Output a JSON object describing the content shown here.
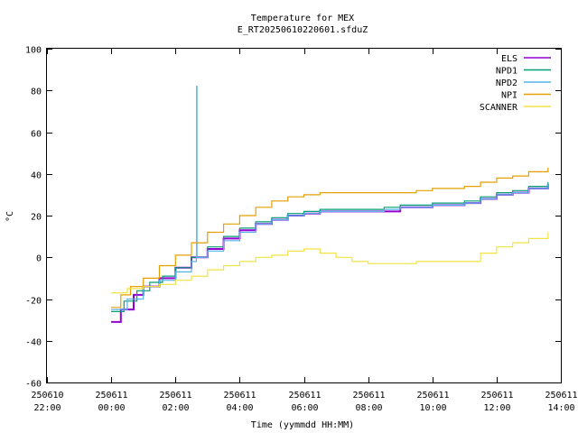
{
  "chart_data": {
    "type": "line",
    "title": "Temperature for MEX",
    "subtitle": "E_RT20250610220601.sfduZ",
    "xlabel": "Time (yymmdd HH:MM)",
    "ylabel": "°C",
    "x_unit": "hours",
    "xlim": [
      -2,
      14
    ],
    "ylim": [
      -60,
      100
    ],
    "y_ticks": [
      -60,
      -40,
      -20,
      0,
      20,
      40,
      60,
      80,
      100
    ],
    "x_ticks": [
      {
        "x": -2,
        "date": "250610",
        "time": "22:00"
      },
      {
        "x": 0,
        "date": "250611",
        "time": "00:00"
      },
      {
        "x": 2,
        "date": "250611",
        "time": "02:00"
      },
      {
        "x": 4,
        "date": "250611",
        "time": "04:00"
      },
      {
        "x": 6,
        "date": "250611",
        "time": "06:00"
      },
      {
        "x": 8,
        "date": "250611",
        "time": "08:00"
      },
      {
        "x": 10,
        "date": "250611",
        "time": "10:00"
      },
      {
        "x": 12,
        "date": "250611",
        "time": "12:00"
      },
      {
        "x": 14,
        "date": "250611",
        "time": "14:00"
      }
    ],
    "grid": false,
    "legend": "top-right",
    "series": [
      {
        "name": "ELS",
        "color": "#9400d3",
        "x": [
          0.0,
          0.3,
          0.7,
          1.0,
          1.5,
          2.0,
          2.5,
          3.0,
          3.5,
          4.0,
          4.5,
          5.0,
          5.5,
          6.0,
          6.5,
          7.0,
          7.5,
          8.0,
          8.5,
          9.0,
          9.5,
          10.0,
          10.5,
          11.0,
          11.5,
          12.0,
          12.5,
          13.0,
          13.6
        ],
        "y": [
          -31,
          -25,
          -18,
          -14,
          -10,
          -5,
          0,
          4,
          9,
          13,
          16,
          18,
          20,
          21,
          22,
          22,
          22,
          22,
          22,
          24,
          24,
          25,
          25,
          26,
          28,
          30,
          31,
          33,
          35
        ]
      },
      {
        "name": "NPD1",
        "color": "#009e73",
        "x": [
          0.0,
          0.4,
          0.8,
          1.2,
          1.6,
          2.0,
          2.5,
          3.0,
          3.5,
          4.0,
          4.5,
          5.0,
          5.5,
          6.0,
          6.5,
          7.0,
          7.5,
          8.0,
          8.5,
          9.0,
          9.5,
          10.0,
          10.5,
          11.0,
          11.5,
          12.0,
          12.5,
          13.0,
          13.6
        ],
        "y": [
          -26,
          -21,
          -16,
          -12,
          -9,
          -5,
          0,
          5,
          10,
          14,
          17,
          19,
          21,
          22,
          23,
          23,
          23,
          23,
          24,
          25,
          25,
          26,
          26,
          27,
          29,
          31,
          32,
          34,
          36
        ]
      },
      {
        "name": "NPD2",
        "color": "#56b4e9",
        "x": [
          0.0,
          0.5,
          1.0,
          1.5,
          2.0,
          2.5,
          2.65,
          2.66,
          2.67,
          3.0,
          3.5,
          4.0,
          4.5,
          5.0,
          5.5,
          6.0,
          6.5,
          7.0,
          7.5,
          8.0,
          8.5,
          9.0,
          9.5,
          10.0,
          10.5,
          11.0,
          11.5,
          12.0,
          12.5,
          13.0,
          13.6
        ],
        "y": [
          -25,
          -20,
          -14,
          -11,
          -7,
          -2,
          0,
          82,
          0,
          3,
          8,
          12,
          16,
          18,
          20,
          21,
          22,
          22,
          22,
          22,
          23,
          24,
          24,
          25,
          25,
          26,
          28,
          30,
          31,
          33,
          35
        ]
      },
      {
        "name": "NPI",
        "color": "#e69f00",
        "x": [
          0.0,
          0.3,
          0.6,
          1.0,
          1.5,
          2.0,
          2.5,
          3.0,
          3.5,
          4.0,
          4.5,
          5.0,
          5.5,
          6.0,
          6.5,
          7.0,
          7.5,
          8.0,
          8.5,
          9.0,
          9.5,
          10.0,
          10.5,
          11.0,
          11.5,
          12.0,
          12.5,
          13.0,
          13.6
        ],
        "y": [
          -24,
          -18,
          -14,
          -10,
          -4,
          1,
          7,
          12,
          16,
          20,
          24,
          27,
          29,
          30,
          31,
          31,
          31,
          31,
          31,
          31,
          32,
          33,
          33,
          34,
          36,
          38,
          39,
          41,
          43
        ]
      },
      {
        "name": "SCANNER",
        "color": "#f0e442",
        "x": [
          0.0,
          0.5,
          1.0,
          1.5,
          2.0,
          2.5,
          3.0,
          3.5,
          4.0,
          4.5,
          5.0,
          5.5,
          6.0,
          6.5,
          7.0,
          7.5,
          8.0,
          8.5,
          9.0,
          9.5,
          10.0,
          10.5,
          11.0,
          11.5,
          12.0,
          12.5,
          13.0,
          13.6
        ],
        "y": [
          -17,
          -15,
          -14,
          -13,
          -11,
          -9,
          -6,
          -4,
          -2,
          0,
          1,
          3,
          4,
          2,
          0,
          -2,
          -3,
          -3,
          -3,
          -2,
          -2,
          -2,
          -2,
          2,
          5,
          7,
          9,
          12
        ]
      }
    ]
  }
}
